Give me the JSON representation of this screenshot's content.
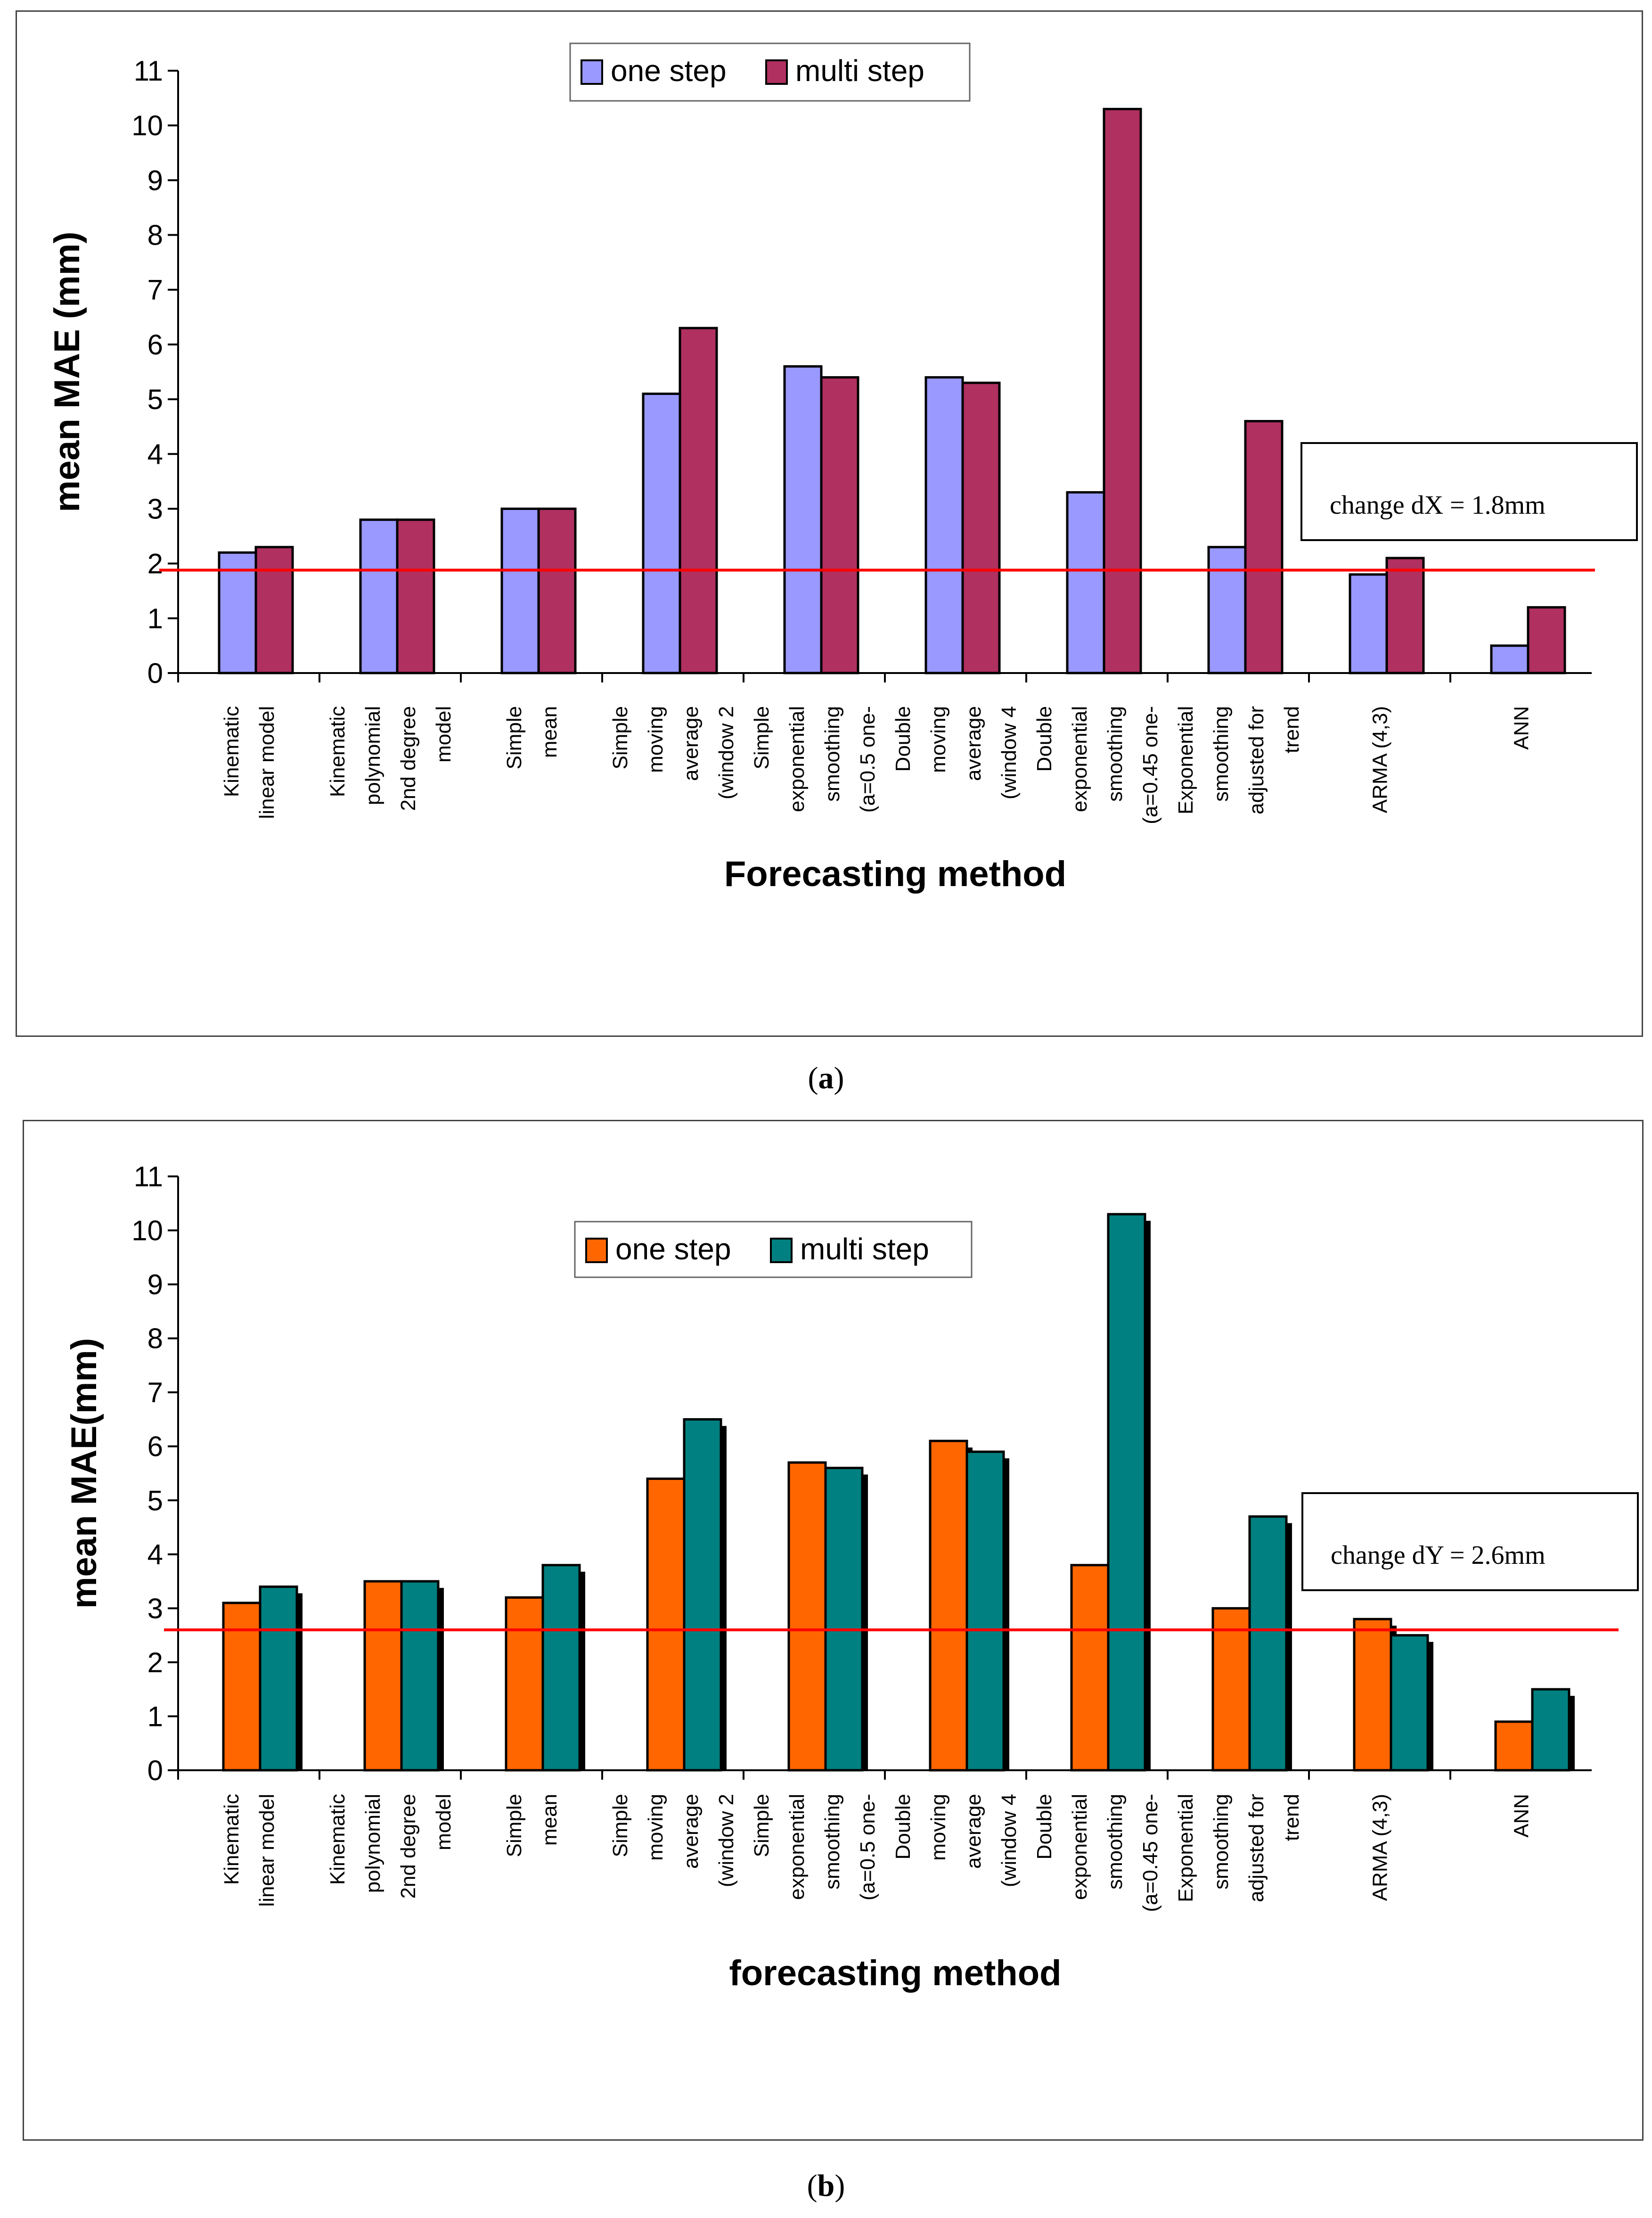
{
  "captions": {
    "a": "a",
    "b": "b"
  },
  "chart_data": [
    {
      "panel": "a",
      "type": "bar",
      "title": "",
      "xlabel": "Forecasting method",
      "ylabel": "mean MAE (mm)",
      "ylim": [
        0,
        11
      ],
      "yticks": [
        0,
        1,
        2,
        3,
        4,
        5,
        6,
        7,
        8,
        9,
        10,
        11
      ],
      "grid": false,
      "legend_position": "top-center",
      "categories": [
        [
          "Kinematic",
          "linear model"
        ],
        [
          "Kinematic",
          "polynomial",
          "2nd degree",
          "model"
        ],
        [
          "Simple",
          "mean"
        ],
        [
          "Simple",
          "moving",
          "average",
          "(window 2"
        ],
        [
          "Simple",
          "exponential",
          "smoothing",
          "(a=0.5 one-"
        ],
        [
          "Double",
          "moving",
          "average",
          "(window 4"
        ],
        [
          "Double",
          "exponential",
          "smoothing",
          "(a=0.45 one-"
        ],
        [
          "Exponential",
          "smoothing",
          "adjusted for",
          "trend"
        ],
        [
          "ARMA  (4,3)"
        ],
        [
          "ANN"
        ]
      ],
      "series": [
        {
          "name": "one step",
          "color": "#9999FF",
          "values": [
            2.2,
            2.8,
            3.0,
            5.1,
            5.6,
            5.4,
            3.3,
            2.3,
            1.8,
            0.5
          ]
        },
        {
          "name": "multi step",
          "color": "#B03060",
          "values": [
            2.3,
            2.8,
            3.0,
            6.3,
            5.4,
            5.3,
            10.3,
            4.6,
            2.1,
            1.2
          ]
        }
      ],
      "reference_line": {
        "value": 1.88,
        "color": "#FF0000"
      },
      "annotation": "change dX = 1.8mm",
      "bar_shadow": false
    },
    {
      "panel": "b",
      "type": "bar",
      "title": "",
      "xlabel": "forecasting method",
      "ylabel": "mean MAE(mm)",
      "ylim": [
        0,
        11
      ],
      "yticks": [
        0,
        1,
        2,
        3,
        4,
        5,
        6,
        7,
        8,
        9,
        10,
        11
      ],
      "grid": false,
      "legend_position": "top-center",
      "categories": [
        [
          "Kinematic",
          "linear model"
        ],
        [
          "Kinematic",
          "polynomial",
          "2nd degree",
          "model"
        ],
        [
          "Simple",
          "mean"
        ],
        [
          "Simple",
          "moving",
          "average",
          "(window 2"
        ],
        [
          "Simple",
          "exponential",
          "smoothing",
          "(a=0.5 one-"
        ],
        [
          "Double",
          "moving",
          "average",
          "(window 4"
        ],
        [
          "Double",
          "exponential",
          "smoothing",
          "(a=0.45 one-"
        ],
        [
          "Exponential",
          "smoothing",
          "adjusted for",
          "trend"
        ],
        [
          "ARMA  (4,3)"
        ],
        [
          "ANN"
        ]
      ],
      "series": [
        {
          "name": "one step",
          "color": "#FF6600",
          "values": [
            3.1,
            3.5,
            3.2,
            5.4,
            5.7,
            6.1,
            3.8,
            3.0,
            2.8,
            0.9
          ]
        },
        {
          "name": "multi step",
          "color": "#008080",
          "values": [
            3.4,
            3.5,
            3.8,
            6.5,
            5.6,
            5.9,
            10.3,
            4.7,
            2.5,
            1.5
          ]
        }
      ],
      "reference_line": {
        "value": 2.6,
        "color": "#FF0000"
      },
      "annotation": "change dY = 2.6mm",
      "bar_shadow": true
    }
  ]
}
